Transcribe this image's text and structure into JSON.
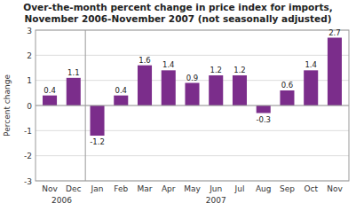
{
  "chart_data": {
    "type": "bar",
    "title": "Over-the-month percent change in price index for imports,",
    "subtitle": "November 2006-November 2007 (not seasonally adjusted)",
    "y_label": "Percent change",
    "categories": [
      "Nov",
      "Dec",
      "Jan",
      "Feb",
      "Mar",
      "Apr",
      "May",
      "Jun",
      "Jul",
      "Aug",
      "Sep",
      "Oct",
      "Nov"
    ],
    "values": [
      0.4,
      1.1,
      -1.2,
      0.4,
      1.6,
      1.4,
      0.9,
      1.2,
      1.2,
      -0.3,
      0.6,
      1.4,
      2.7
    ],
    "color": "#7B2D8B",
    "ylim": [
      -3,
      3
    ],
    "yticks": [
      -3,
      -2,
      -1,
      0,
      1,
      2,
      3
    ],
    "grid": true,
    "data_labels": true,
    "annotations": [
      {
        "text": "2006",
        "x": 0.5
      },
      {
        "text": "2007",
        "x": 7.0
      },
      {
        "type": "vline",
        "x": 1.5
      }
    ]
  }
}
